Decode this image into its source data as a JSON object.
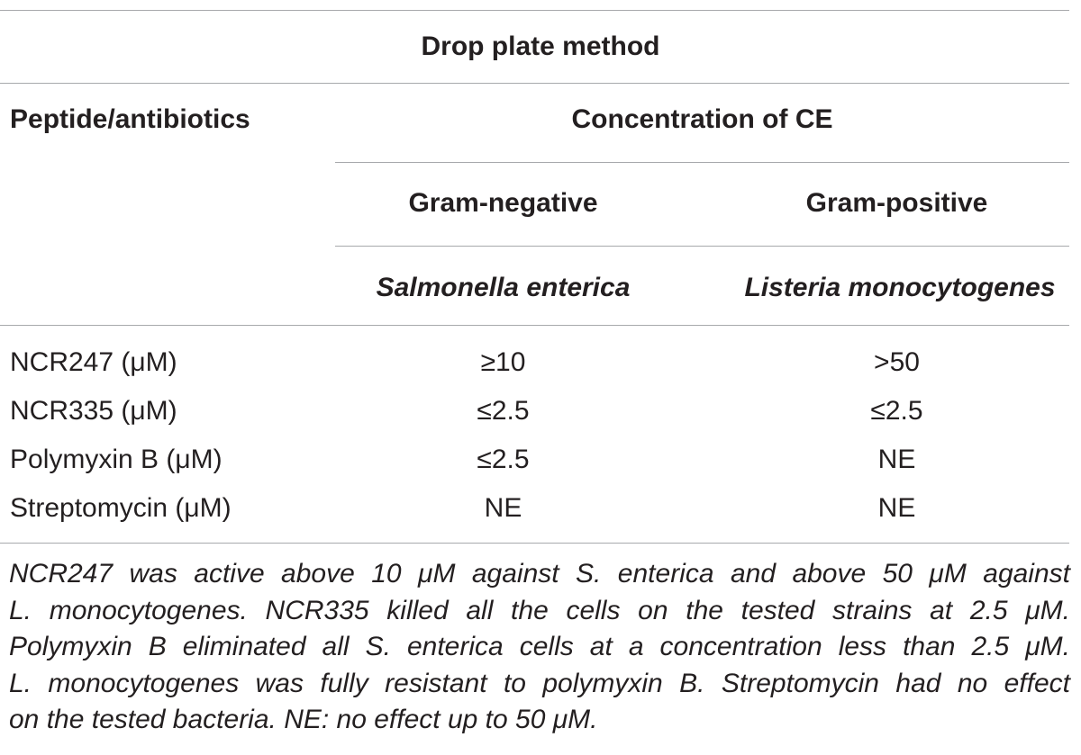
{
  "table": {
    "title": "Drop plate method",
    "row_header": "Peptide/antibiotics",
    "group_header": "Concentration of CE",
    "columns": [
      {
        "gram": "Gram-negative",
        "species": "Salmonella enterica"
      },
      {
        "gram": "Gram-positive",
        "species": "Listeria monocytogenes"
      }
    ],
    "rows": [
      {
        "label": "NCR247 (μM)",
        "values": [
          "≥10",
          ">50"
        ]
      },
      {
        "label": "NCR335 (μM)",
        "values": [
          "≤2.5",
          "≤2.5"
        ]
      },
      {
        "label": "Polymyxin B (μM)",
        "values": [
          "≤2.5",
          "NE"
        ]
      },
      {
        "label": "Streptomycin (μM)",
        "values": [
          "NE",
          "NE"
        ]
      }
    ]
  },
  "footnote": {
    "lines": [
      "NCR247 was active above 10 μM against S. enterica and above 50 μM against",
      "L. monocytogenes. NCR335 killed all the cells on the tested strains at 2.5 μM.",
      "Polymyxin B eliminated all S. enterica cells at a concentration less than 2.5 μM.",
      "L. monocytogenes was fully resistant to polymyxin B. Streptomycin had no effect",
      "on the tested bacteria. NE: no effect up to 50 μM."
    ]
  }
}
